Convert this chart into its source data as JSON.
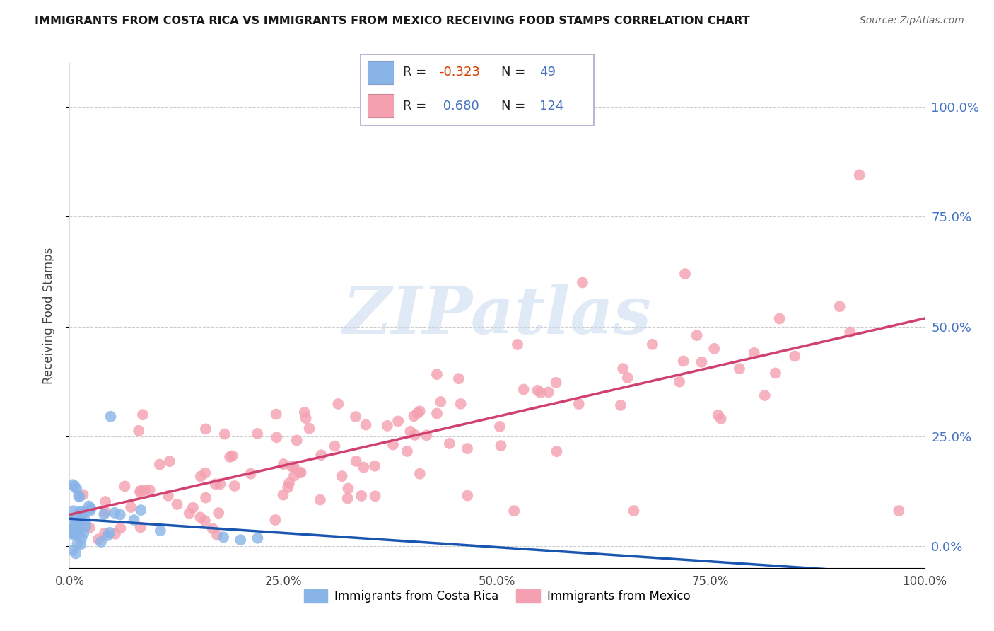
{
  "title": "IMMIGRANTS FROM COSTA RICA VS IMMIGRANTS FROM MEXICO RECEIVING FOOD STAMPS CORRELATION CHART",
  "source": "Source: ZipAtlas.com",
  "ylabel": "Receiving Food Stamps",
  "xlim": [
    0,
    1.0
  ],
  "ylim": [
    -0.05,
    1.1
  ],
  "ytick_labels": [
    "0.0%",
    "25.0%",
    "50.0%",
    "75.0%",
    "100.0%"
  ],
  "ytick_values": [
    0.0,
    0.25,
    0.5,
    0.75,
    1.0
  ],
  "xtick_labels": [
    "0.0%",
    "25.0%",
    "50.0%",
    "75.0%",
    "100.0%"
  ],
  "xtick_values": [
    0.0,
    0.25,
    0.5,
    0.75,
    1.0
  ],
  "costa_rica_color": "#89b4e8",
  "mexico_color": "#f4a0b0",
  "costa_rica_R": -0.323,
  "costa_rica_N": 49,
  "mexico_R": 0.68,
  "mexico_N": 124,
  "costa_rica_line_color": "#1a56b0",
  "mexico_line_color": "#d04070",
  "watermark": "ZIPatlas",
  "legend_label_cr": "Immigrants from Costa Rica",
  "legend_label_mx": "Immigrants from Mexico",
  "background_color": "#ffffff",
  "grid_color": "#cccccc"
}
